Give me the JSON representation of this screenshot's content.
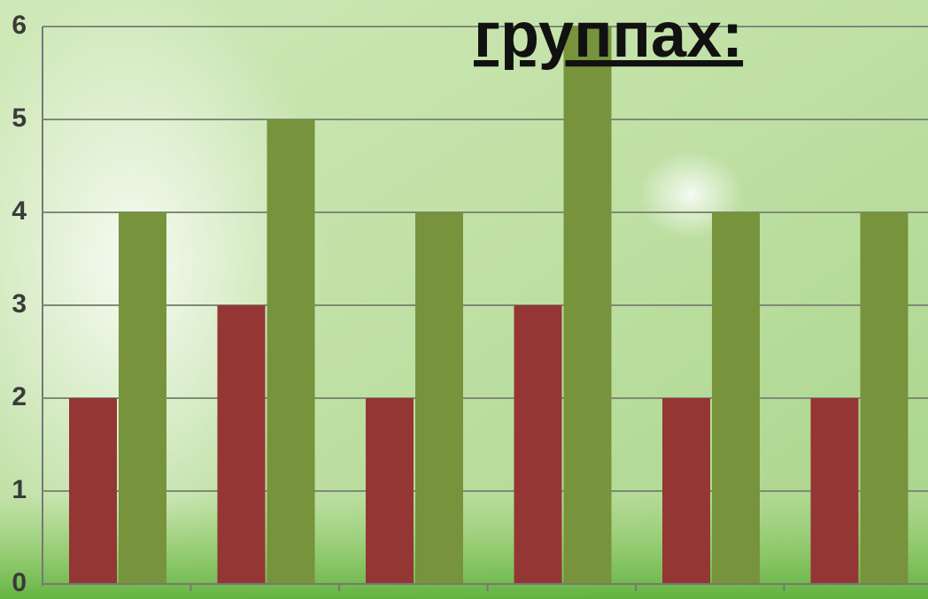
{
  "chart_data": {
    "type": "bar",
    "title": "группах:",
    "categories": [
      null,
      null,
      null,
      null,
      null,
      null
    ],
    "series": [
      {
        "color": "#943634",
        "values": [
          2,
          3,
          2,
          3,
          2,
          2
        ]
      },
      {
        "color": "#77933c",
        "values": [
          4,
          5,
          4,
          6,
          4,
          4
        ]
      }
    ],
    "ylim": [
      0,
      6
    ],
    "yticks": [
      0,
      1,
      2,
      3,
      4,
      5,
      6
    ],
    "grid": true
  }
}
